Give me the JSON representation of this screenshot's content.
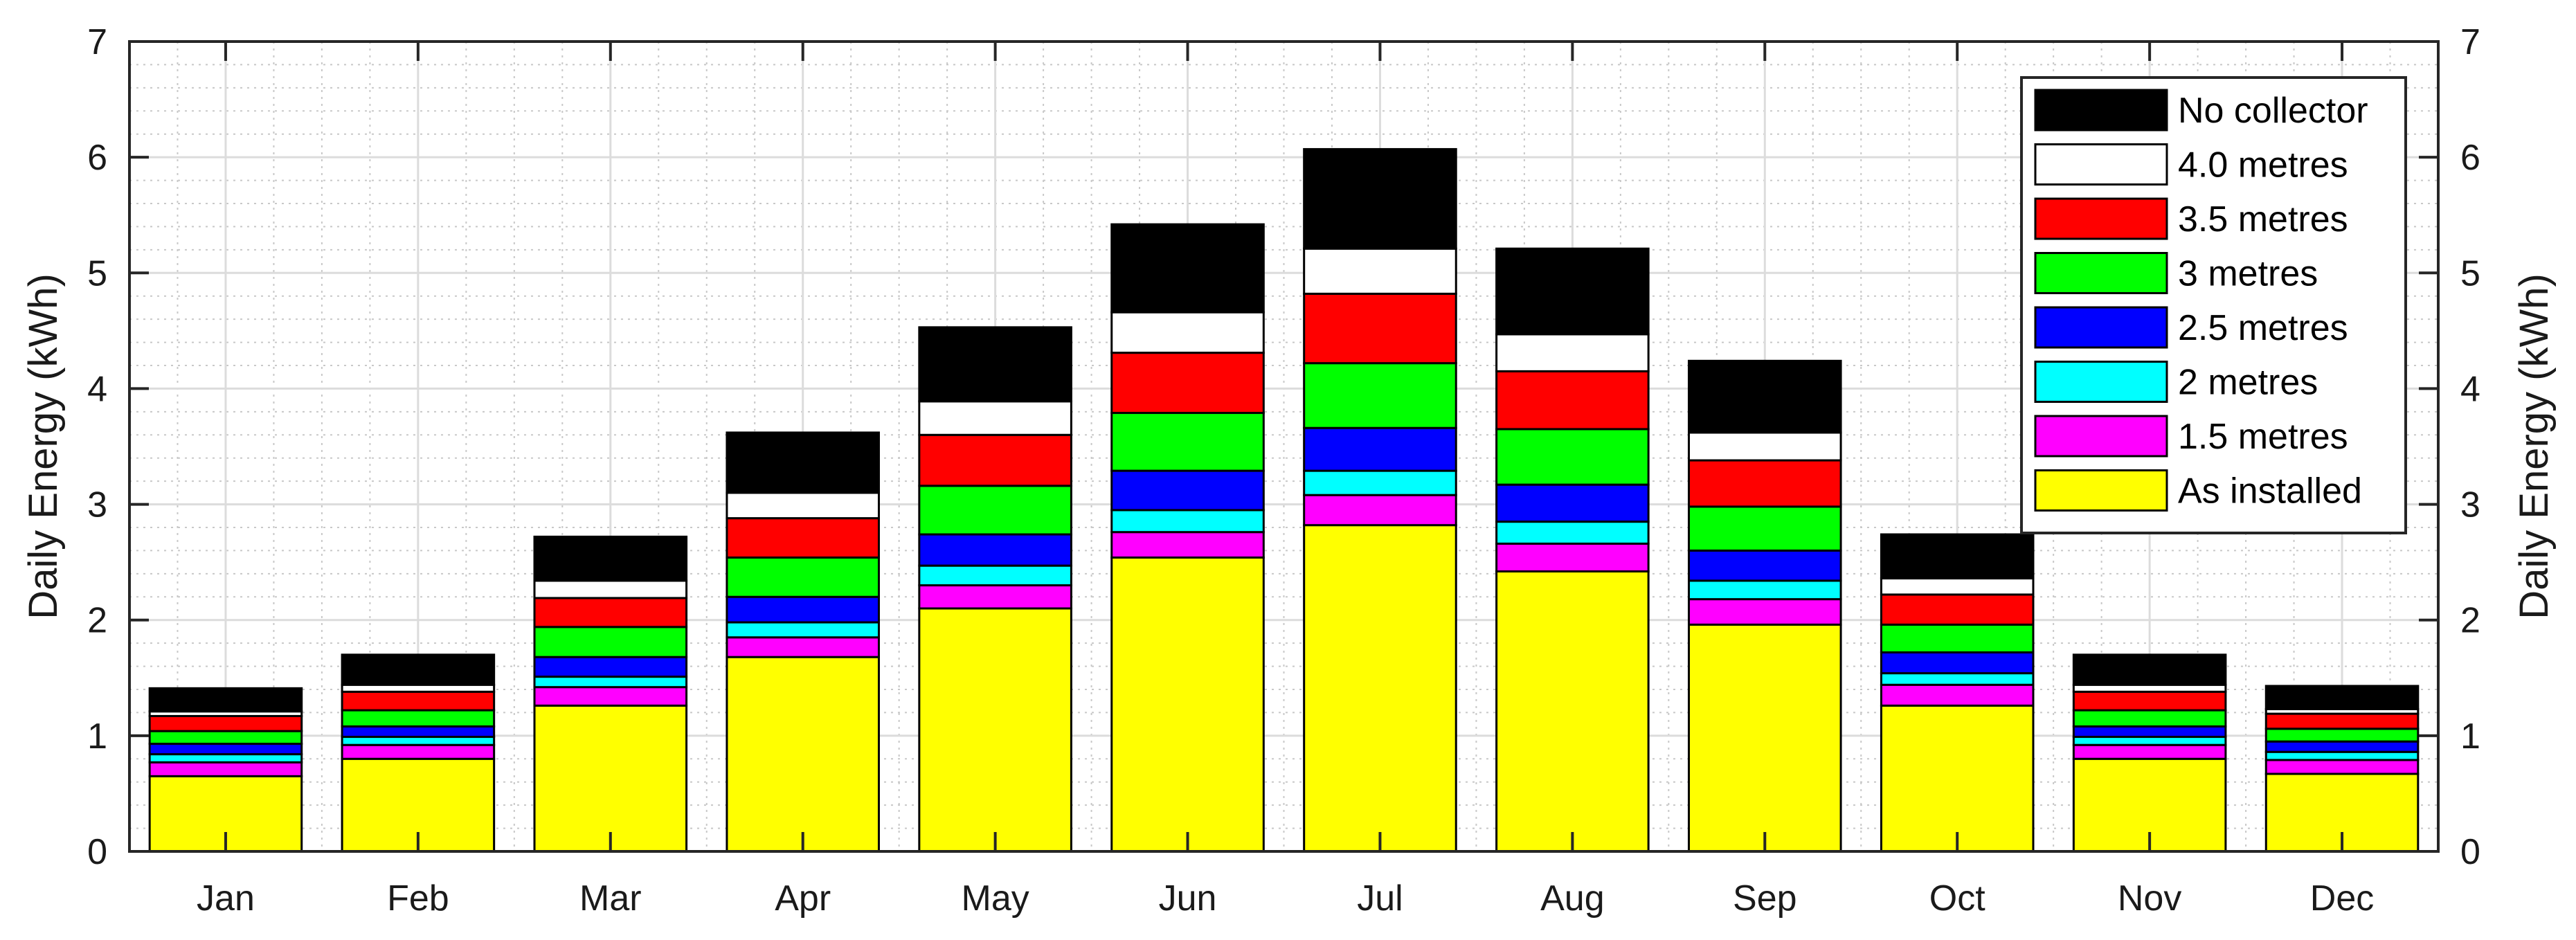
{
  "chart_data": {
    "type": "bar",
    "stacked": true,
    "categories": [
      "Jan",
      "Feb",
      "Mar",
      "Apr",
      "May",
      "Jun",
      "Jul",
      "Aug",
      "Sep",
      "Oct",
      "Nov",
      "Dec"
    ],
    "ylabel": "Daily Energy (kWh)",
    "ylabel_right": "Daily Energy (kWh)",
    "ylim": [
      0,
      7
    ],
    "yticks": [
      0,
      1,
      2,
      3,
      4,
      5,
      6,
      7
    ],
    "grid": true,
    "minor_grid": true,
    "legend_position": "top-right",
    "series": [
      {
        "name": "As installed",
        "color": "#ffff00",
        "values": [
          0.65,
          0.8,
          1.26,
          1.68,
          2.1,
          2.54,
          2.82,
          2.42,
          1.96,
          1.26,
          0.8,
          0.67
        ]
      },
      {
        "name": "1.5 metres",
        "color": "#ff00ff",
        "values": [
          0.12,
          0.12,
          0.16,
          0.17,
          0.2,
          0.22,
          0.26,
          0.24,
          0.22,
          0.18,
          0.12,
          0.12
        ]
      },
      {
        "name": "2 metres",
        "color": "#00ffff",
        "values": [
          0.07,
          0.07,
          0.09,
          0.13,
          0.17,
          0.19,
          0.21,
          0.19,
          0.16,
          0.1,
          0.07,
          0.07
        ]
      },
      {
        "name": "2.5 metres",
        "color": "#0000ff",
        "values": [
          0.09,
          0.09,
          0.17,
          0.22,
          0.27,
          0.34,
          0.37,
          0.32,
          0.26,
          0.18,
          0.09,
          0.09
        ]
      },
      {
        "name": "3 metres",
        "color": "#00ff00",
        "values": [
          0.11,
          0.14,
          0.26,
          0.34,
          0.42,
          0.5,
          0.56,
          0.48,
          0.38,
          0.24,
          0.14,
          0.11
        ]
      },
      {
        "name": "3.5 metres",
        "color": "#ff0000",
        "values": [
          0.13,
          0.16,
          0.25,
          0.34,
          0.44,
          0.52,
          0.6,
          0.5,
          0.4,
          0.26,
          0.16,
          0.13
        ]
      },
      {
        "name": "4.0 metres",
        "color": "#ffffff",
        "values": [
          0.04,
          0.06,
          0.15,
          0.22,
          0.29,
          0.35,
          0.39,
          0.32,
          0.24,
          0.14,
          0.06,
          0.04
        ]
      },
      {
        "name": "No collector",
        "color": "#000000",
        "values": [
          0.2,
          0.26,
          0.38,
          0.52,
          0.64,
          0.76,
          0.86,
          0.74,
          0.62,
          0.38,
          0.26,
          0.2
        ]
      }
    ],
    "legend_order": [
      "No collector",
      "4.0 metres",
      "3.5 metres",
      "3 metres",
      "2.5 metres",
      "2 metres",
      "1.5 metres",
      "As installed"
    ]
  }
}
